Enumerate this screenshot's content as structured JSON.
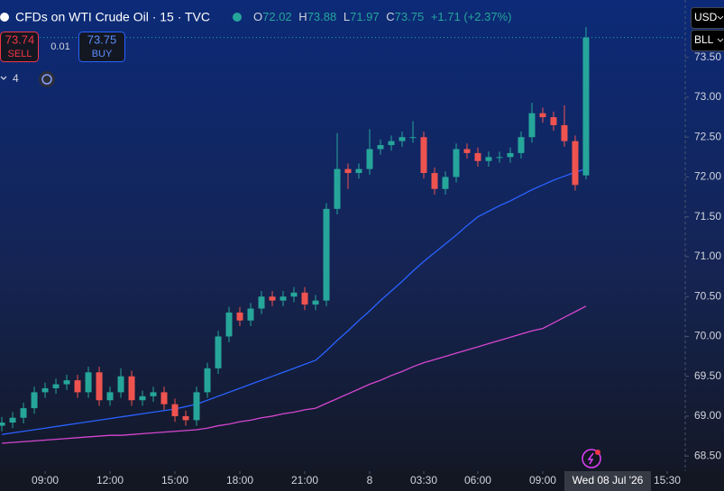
{
  "header": {
    "title": "CFDs on WTI Crude Oil · 15 · TVC",
    "o_label": "O",
    "open": 72.02,
    "h_label": "H",
    "high": 73.88,
    "l_label": "L",
    "low": 71.97,
    "c_label": "C",
    "close": 73.75,
    "change": "+1.71 (+2.37%)",
    "sell_price": 73.74,
    "sell_label": "SELL",
    "spread": 0.01,
    "buy_price": 73.75,
    "buy_label": "BUY",
    "indicator_count": 4,
    "currency": "USD",
    "unit": "BLL"
  },
  "chart_data": {
    "type": "candlestick",
    "up_color": "#26a69a",
    "down_color": "#ef5350",
    "grid": false,
    "xlim": [
      -0.17,
      63.17
    ],
    "xticks": [
      {
        "value": 4,
        "label": "09:00"
      },
      {
        "value": 10,
        "label": "12:00"
      },
      {
        "value": 16,
        "label": "15:00"
      },
      {
        "value": 22,
        "label": "18:00"
      },
      {
        "value": 28,
        "label": "21:00"
      },
      {
        "value": 34,
        "label": "8"
      },
      {
        "value": 39,
        "label": "03:30"
      },
      {
        "value": 44,
        "label": "06:00"
      },
      {
        "value": 50,
        "label": "09:00"
      },
      {
        "value": 61.5,
        "label": "15:30"
      }
    ],
    "crosshair_date": {
      "value": 56,
      "label": "Wed 08 Jul '26"
    },
    "ylim": [
      68.31,
      74.22
    ],
    "yticks": [
      {
        "value": 68.5,
        "label": "68.50"
      },
      {
        "value": 69,
        "label": "69.00"
      },
      {
        "value": 69.5,
        "label": "69.50"
      },
      {
        "value": 70,
        "label": "70.00"
      },
      {
        "value": 70.5,
        "label": "70.50"
      },
      {
        "value": 71,
        "label": "71.00"
      },
      {
        "value": 71.5,
        "label": "71.50"
      },
      {
        "value": 72,
        "label": "72.00"
      },
      {
        "value": 72.5,
        "label": "72.50"
      },
      {
        "value": 73,
        "label": "73.00"
      },
      {
        "value": 73.5,
        "label": "73.50"
      }
    ],
    "last_price": 73.75,
    "candles": {
      "open": [
        68.88,
        68.92,
        68.98,
        69.1,
        69.3,
        69.35,
        69.4,
        69.45,
        69.3,
        69.55,
        69.2,
        69.3,
        69.5,
        69.2,
        69.25,
        69.3,
        69.15,
        69.0,
        68.95,
        69.3,
        69.6,
        70.0,
        70.3,
        70.2,
        70.35,
        70.5,
        70.45,
        70.5,
        70.55,
        70.4,
        70.45,
        71.6,
        72.1,
        72.05,
        72.1,
        72.35,
        72.4,
        72.45,
        72.5,
        72.5,
        72.05,
        71.85,
        72.0,
        72.35,
        72.3,
        72.2,
        72.25,
        72.25,
        72.3,
        72.5,
        72.8,
        72.75,
        72.65,
        72.45,
        72.02
      ],
      "high": [
        68.99,
        69.05,
        69.17,
        69.37,
        69.42,
        69.47,
        69.52,
        69.52,
        69.62,
        69.62,
        69.37,
        69.6,
        69.57,
        69.32,
        69.37,
        69.37,
        69.22,
        69.07,
        69.37,
        69.67,
        70.07,
        70.37,
        70.37,
        70.42,
        70.57,
        70.57,
        70.57,
        70.62,
        70.62,
        70.52,
        71.67,
        72.55,
        72.17,
        72.17,
        72.6,
        72.47,
        72.52,
        72.57,
        72.7,
        72.57,
        72.12,
        72.07,
        72.42,
        72.42,
        72.37,
        72.32,
        72.32,
        72.37,
        72.57,
        72.93,
        72.87,
        72.82,
        72.9,
        72.52,
        73.88
      ],
      "low": [
        68.81,
        68.85,
        68.91,
        69.03,
        69.23,
        69.28,
        69.33,
        69.23,
        69.23,
        69.13,
        69.13,
        69.23,
        69.13,
        69.13,
        69.18,
        69.08,
        68.93,
        68.88,
        68.88,
        69.23,
        69.53,
        69.93,
        70.13,
        70.13,
        70.28,
        70.38,
        70.38,
        70.43,
        70.33,
        70.33,
        70.38,
        71.53,
        71.85,
        71.98,
        72.03,
        72.28,
        72.33,
        72.38,
        72.43,
        71.98,
        71.78,
        71.78,
        71.93,
        72.23,
        72.13,
        72.13,
        72.18,
        72.18,
        72.23,
        72.43,
        72.68,
        72.58,
        72.38,
        71.83,
        71.97
      ],
      "close": [
        68.92,
        68.98,
        69.1,
        69.3,
        69.35,
        69.4,
        69.45,
        69.3,
        69.55,
        69.2,
        69.3,
        69.5,
        69.2,
        69.25,
        69.3,
        69.15,
        69.0,
        68.95,
        69.3,
        69.6,
        70.0,
        70.3,
        70.2,
        70.35,
        70.5,
        70.45,
        70.5,
        70.55,
        70.4,
        70.45,
        71.6,
        72.1,
        72.05,
        72.1,
        72.35,
        72.4,
        72.45,
        72.5,
        72.5,
        72.05,
        71.85,
        72.0,
        72.35,
        72.3,
        72.2,
        72.25,
        72.25,
        72.3,
        72.5,
        72.8,
        72.75,
        72.65,
        72.45,
        71.9,
        73.75
      ]
    },
    "lines": [
      {
        "color": "#2962ff",
        "values": [
          68.77,
          68.79,
          68.81,
          68.83,
          68.85,
          68.87,
          68.89,
          68.91,
          68.93,
          68.95,
          68.97,
          68.99,
          69.01,
          69.03,
          69.05,
          69.07,
          69.09,
          69.12,
          69.15,
          69.2,
          69.25,
          69.3,
          69.35,
          69.4,
          69.45,
          69.5,
          69.55,
          69.6,
          69.65,
          69.7,
          69.82,
          69.95,
          70.07,
          70.2,
          70.32,
          70.45,
          70.57,
          70.69,
          70.82,
          70.94,
          71.05,
          71.16,
          71.27,
          71.39,
          71.5,
          71.57,
          71.64,
          71.7,
          71.77,
          71.84,
          71.9,
          71.96,
          72.01,
          72.06,
          72.1
        ]
      },
      {
        "color": "#d646d0",
        "values": [
          68.66,
          68.67,
          68.68,
          68.69,
          68.7,
          68.71,
          68.72,
          68.73,
          68.74,
          68.75,
          68.76,
          68.76,
          68.77,
          68.78,
          68.79,
          68.8,
          68.81,
          68.82,
          68.83,
          68.85,
          68.88,
          68.9,
          68.93,
          68.95,
          68.98,
          69.0,
          69.03,
          69.05,
          69.08,
          69.1,
          69.16,
          69.22,
          69.28,
          69.34,
          69.4,
          69.45,
          69.51,
          69.56,
          69.62,
          69.67,
          69.71,
          69.75,
          69.79,
          69.83,
          69.87,
          69.91,
          69.95,
          69.99,
          70.03,
          70.07,
          70.1,
          70.17,
          70.24,
          70.31,
          70.38
        ]
      }
    ]
  }
}
